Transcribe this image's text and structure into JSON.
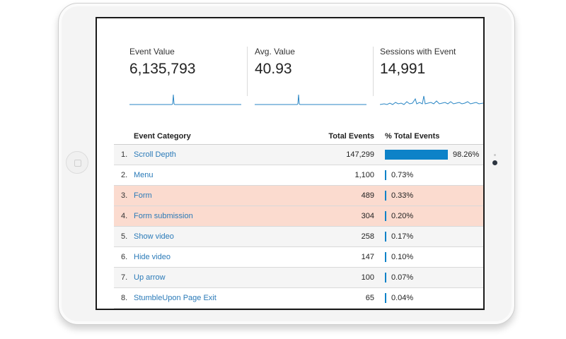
{
  "metrics": [
    {
      "label": "Event Value",
      "value": "6,135,793"
    },
    {
      "label": "Avg. Value",
      "value": "40.93"
    },
    {
      "label": "Sessions with Event",
      "value": "14,991"
    }
  ],
  "colors": {
    "accent": "#0d82c8",
    "link": "#2a7ab8",
    "highlight_row": "#fbdbcf",
    "sparkline": "#2a86c4"
  },
  "table": {
    "headers": {
      "category": "Event Category",
      "total": "Total Events",
      "percent": "% Total Events"
    },
    "rows": [
      {
        "rank": "1.",
        "category": "Scroll Depth",
        "total": "147,299",
        "percent": "98.26%",
        "fraction": 0.9826,
        "highlight": false
      },
      {
        "rank": "2.",
        "category": "Menu",
        "total": "1,100",
        "percent": "0.73%",
        "fraction": 0.0073,
        "highlight": false
      },
      {
        "rank": "3.",
        "category": "Form",
        "total": "489",
        "percent": "0.33%",
        "fraction": 0.0033,
        "highlight": true
      },
      {
        "rank": "4.",
        "category": "Form submission",
        "total": "304",
        "percent": "0.20%",
        "fraction": 0.002,
        "highlight": true
      },
      {
        "rank": "5.",
        "category": "Show video",
        "total": "258",
        "percent": "0.17%",
        "fraction": 0.0017,
        "highlight": false
      },
      {
        "rank": "6.",
        "category": "Hide video",
        "total": "147",
        "percent": "0.10%",
        "fraction": 0.001,
        "highlight": false
      },
      {
        "rank": "7.",
        "category": "Up arrow",
        "total": "100",
        "percent": "0.07%",
        "fraction": 0.0007,
        "highlight": false
      },
      {
        "rank": "8.",
        "category": "StumbleUpon Page Exit",
        "total": "65",
        "percent": "0.04%",
        "fraction": 0.0004,
        "highlight": false
      }
    ]
  }
}
